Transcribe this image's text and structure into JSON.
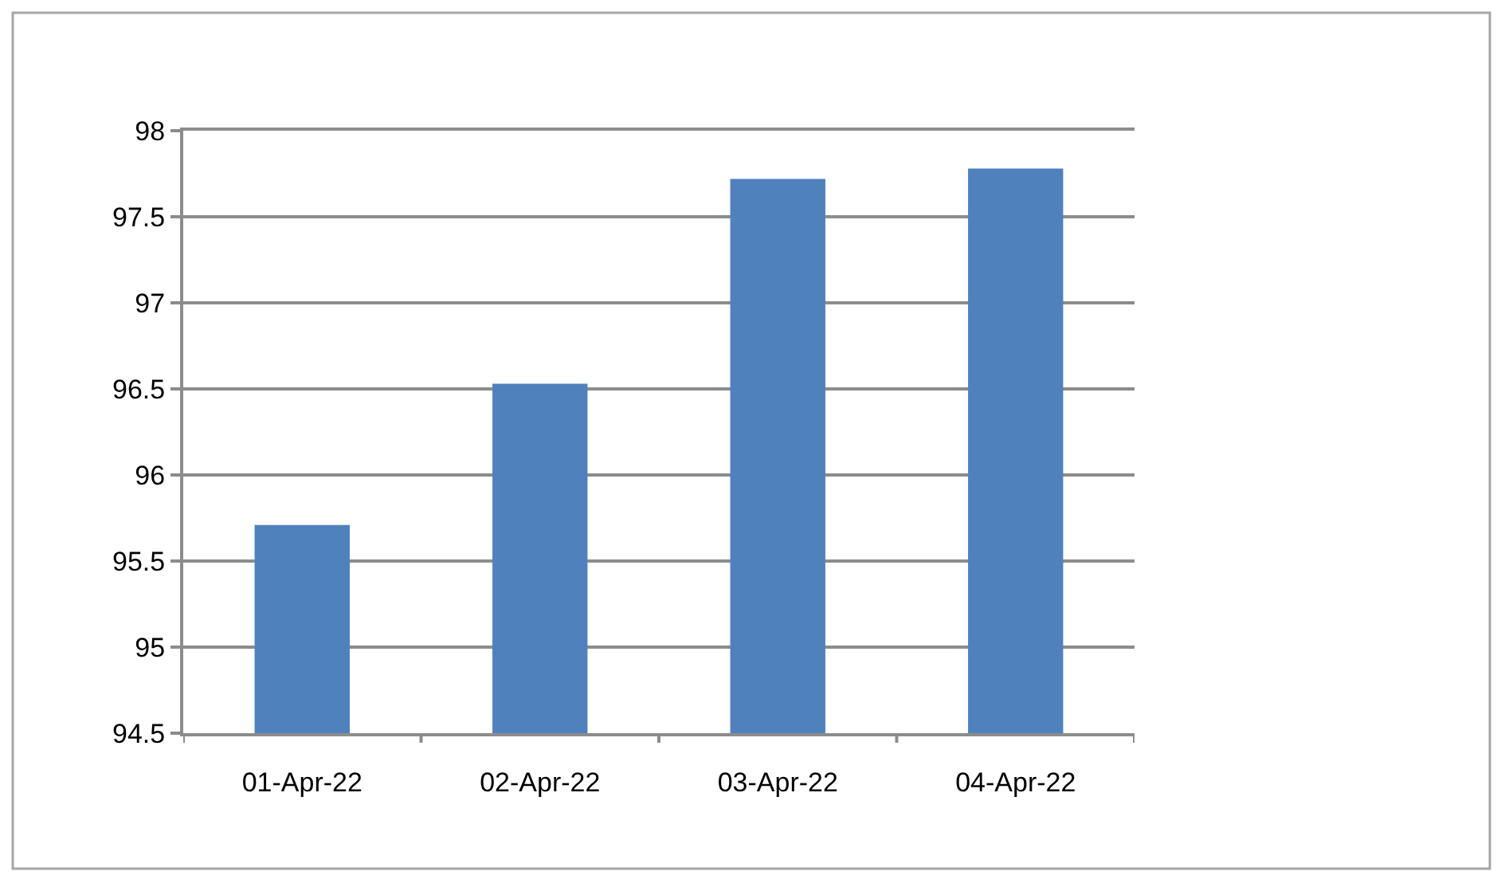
{
  "chart_data": {
    "type": "bar",
    "categories": [
      "01-Apr-22",
      "02-Apr-22",
      "03-Apr-22",
      "04-Apr-22"
    ],
    "values": [
      95.71,
      96.53,
      97.72,
      97.78
    ],
    "color": "#4f81bd",
    "ylim": [
      94.5,
      98
    ],
    "yticks": [
      94.5,
      95,
      95.5,
      96,
      96.5,
      97,
      97.5,
      98
    ],
    "grid": "y"
  }
}
